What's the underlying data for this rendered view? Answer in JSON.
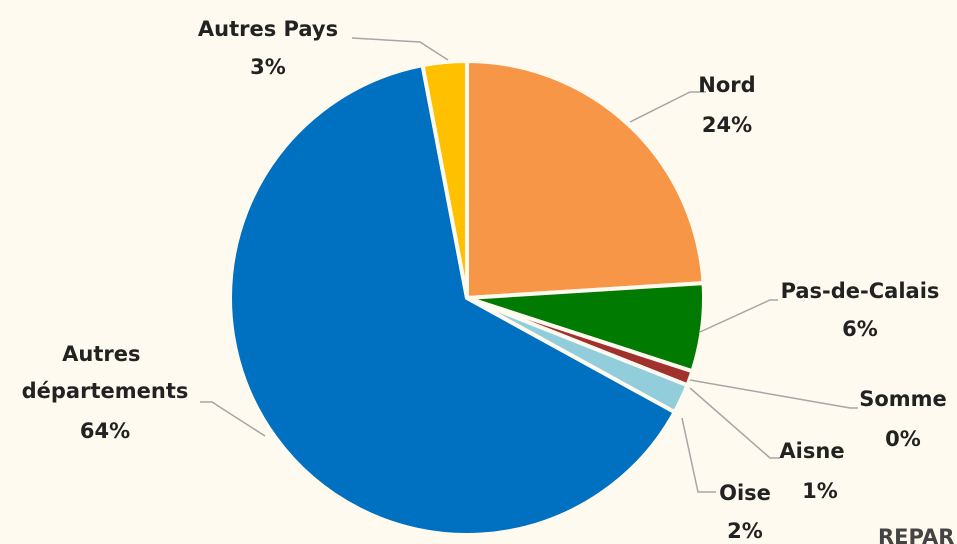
{
  "chart_data": {
    "type": "pie",
    "categories": [
      "Nord",
      "Pas-de-Calais",
      "Somme",
      "Aisne",
      "Oise",
      "Autres départements",
      "Autres Pays"
    ],
    "values": [
      24,
      6,
      0,
      1,
      2,
      64,
      3
    ],
    "value_labels": [
      "24%",
      "6%",
      "0%",
      "1%",
      "2%",
      "64%",
      "3%"
    ],
    "colors": [
      "#f79646",
      "#007a00",
      "#7f6fa8",
      "#a0322d",
      "#92cddc",
      "#0070c0",
      "#ffc000"
    ],
    "annotation": "REPAR"
  }
}
